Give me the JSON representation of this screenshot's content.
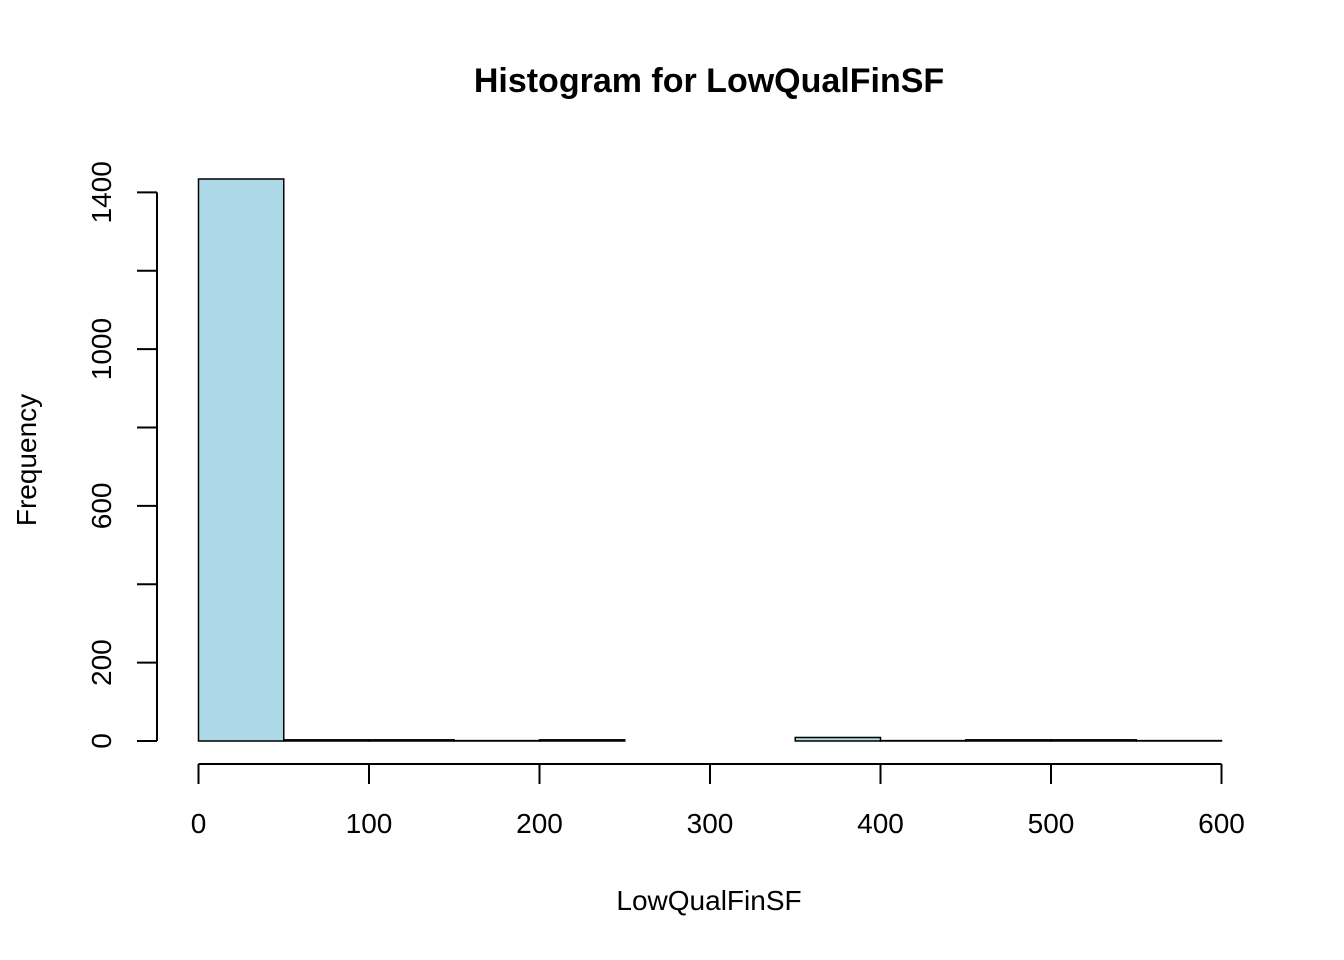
{
  "chart_data": {
    "type": "bar",
    "title": "Histogram for LowQualFinSF",
    "xlabel": "LowQualFinSF",
    "ylabel": "Frequency",
    "bin_edges": [
      0,
      50,
      100,
      150,
      200,
      250,
      300,
      350,
      400,
      450,
      500,
      550,
      600
    ],
    "values": [
      1434,
      3,
      3,
      1,
      3,
      0,
      0,
      9,
      1,
      3,
      3,
      1
    ],
    "x_ticks": [
      0,
      100,
      200,
      300,
      400,
      500,
      600
    ],
    "y_ticks": [
      0,
      200,
      600,
      1000,
      1400
    ],
    "y_minor_ticks": [
      400,
      800,
      1200
    ],
    "xlim": [
      0,
      600
    ],
    "ylim": [
      0,
      1434
    ],
    "grid": false,
    "legend": "none",
    "colors": {
      "bar_fill": "#ADD8E6",
      "bar_stroke": "#000000",
      "axis": "#000000",
      "text": "#000000",
      "background": "#FFFFFF"
    }
  }
}
